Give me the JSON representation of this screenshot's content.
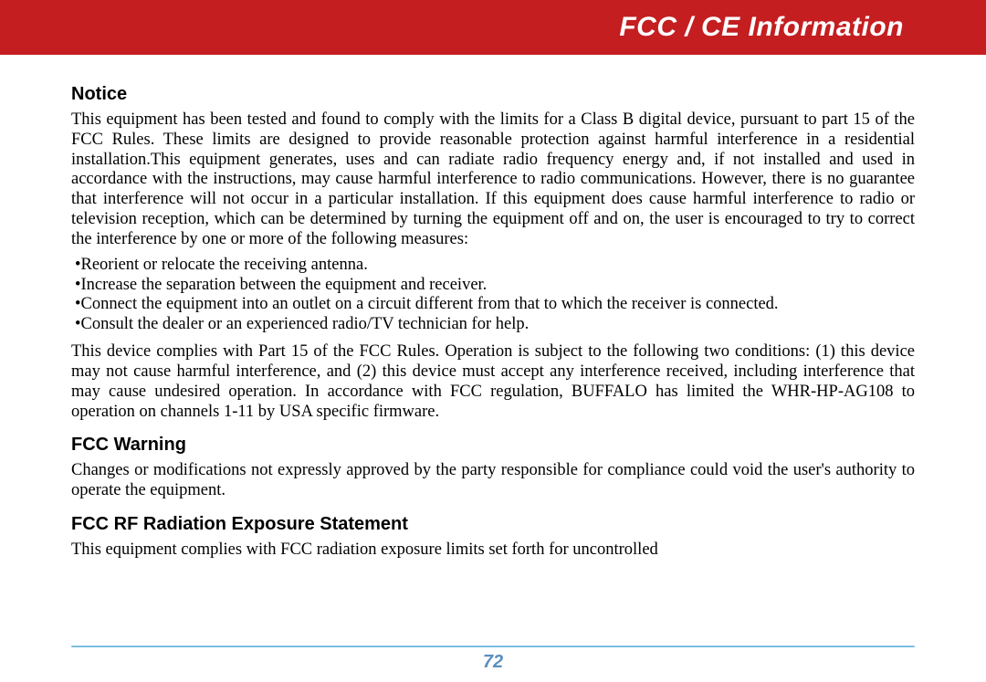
{
  "header": {
    "title": "FCC / CE Information",
    "bg_color": "#c41e21",
    "text_color": "#ffffff"
  },
  "sections": {
    "notice": {
      "heading": "Notice",
      "para1": "This equipment has been tested and found to comply with the limits for a Class B digital device, pursuant to part 15 of the FCC Rules. These limits are designed to provide reasonable protection against harmful interference in a residential installation.This equipment generates, uses and can radiate radio frequency energy and, if not installed and used in accordance with the instructions, may cause harmful interference to radio communications. However, there is no guarantee that interference will not occur in a particular installation. If this equipment does cause harmful interference to radio or television reception, which can be determined by turning the equipment off and on, the user is encouraged to try to correct the interference by one or more of the following measures:",
      "bullets": [
        "Reorient or relocate the receiving antenna.",
        "Increase the separation between the equipment and receiver.",
        "Connect the equipment into an outlet on a circuit different from that to which the receiver is connected.",
        "Consult the dealer or an experienced radio/TV technician for help."
      ],
      "para2": "This device complies with Part 15 of the FCC Rules. Operation is subject to the following two conditions: (1) this device may not cause harmful interference, and (2) this device must accept any interference received, including interference that may cause undesired operation. In accordance with FCC regulation, BUFFALO has limited the WHR-HP-AG108 to operation on channels 1-11 by USA specific firmware."
    },
    "fcc_warning": {
      "heading": "FCC Warning",
      "para": "Changes or modifications not expressly approved by the party responsible for compliance could void the user's authority to operate the equipment."
    },
    "rf_exposure": {
      "heading": "FCC RF Radiation Exposure Statement",
      "para": "This equipment complies with FCC radiation exposure limits set forth for uncontrolled"
    }
  },
  "footer": {
    "page_number": "72",
    "line_color_top": "#9fd4ed",
    "line_color_bottom": "#5aa9d6",
    "page_num_color": "#5b8fbf"
  }
}
